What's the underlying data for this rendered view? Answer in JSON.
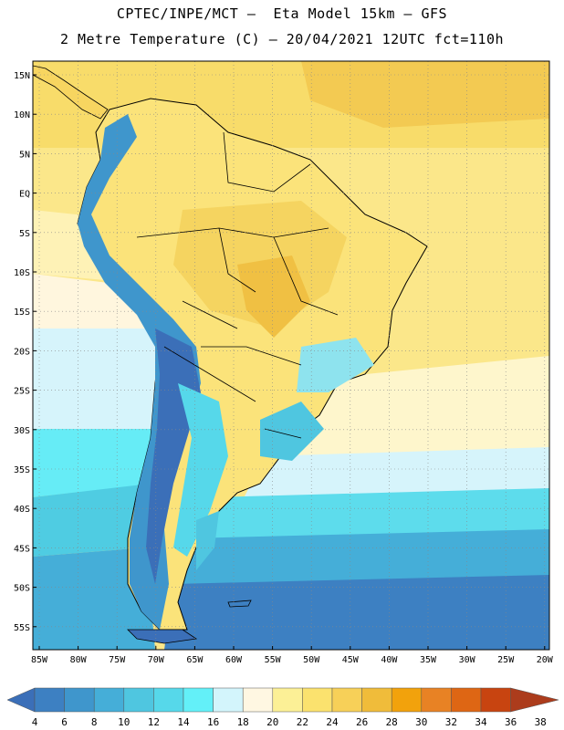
{
  "header": {
    "line1": "CPTEC/INPE/MCT –  Eta Model 15km – GFS",
    "line2": "2 Metre Temperature (C) – 20/04/2021 12UTC fct=110h"
  },
  "map": {
    "lat_labels": [
      "15N",
      "10N",
      "5N",
      "EQ",
      "5S",
      "10S",
      "15S",
      "20S",
      "25S",
      "30S",
      "35S",
      "40S",
      "45S",
      "50S",
      "55S"
    ],
    "lon_labels": [
      "85W",
      "80W",
      "75W",
      "70W",
      "65W",
      "60W",
      "55W",
      "50W",
      "45W",
      "40W",
      "35W",
      "30W",
      "25W",
      "20W"
    ]
  },
  "colorbar": {
    "labels": [
      "4",
      "6",
      "8",
      "10",
      "12",
      "14",
      "16",
      "18",
      "20",
      "22",
      "24",
      "26",
      "28",
      "30",
      "32",
      "34",
      "36",
      "38"
    ],
    "colors": [
      "#3b6fb8",
      "#3d80c2",
      "#3f96cc",
      "#45aed8",
      "#4fc6e0",
      "#56d8ea",
      "#63f0f8",
      "#d3f5fc",
      "#fff7e2",
      "#fcf096",
      "#fbe26e",
      "#f7d058",
      "#f0bc3a",
      "#f2a20c",
      "#e88224",
      "#de6614",
      "#c84410",
      "#ac3c1c"
    ]
  }
}
